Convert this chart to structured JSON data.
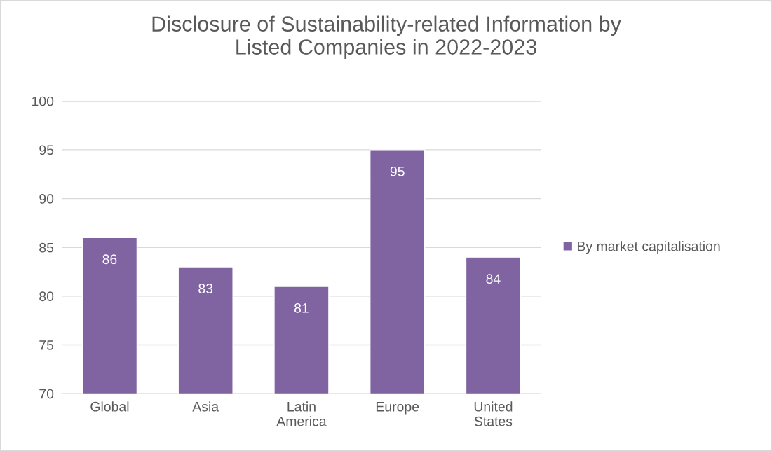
{
  "chart_data": {
    "type": "bar",
    "title": "Disclosure of Sustainability-related Information by\nListed Companies in 2022-2023",
    "categories": [
      "Global",
      "Asia",
      "Latin\nAmerica",
      "Europe",
      "United\nStates"
    ],
    "series": [
      {
        "name": "By market capitalisation",
        "color": "#8064a2",
        "values": [
          86,
          83,
          81,
          95,
          84
        ]
      }
    ],
    "ylim": [
      70,
      100
    ],
    "yticks": [
      70,
      75,
      80,
      85,
      90,
      95,
      100
    ],
    "grid": "y",
    "legend": "right",
    "data_labels": true
  }
}
